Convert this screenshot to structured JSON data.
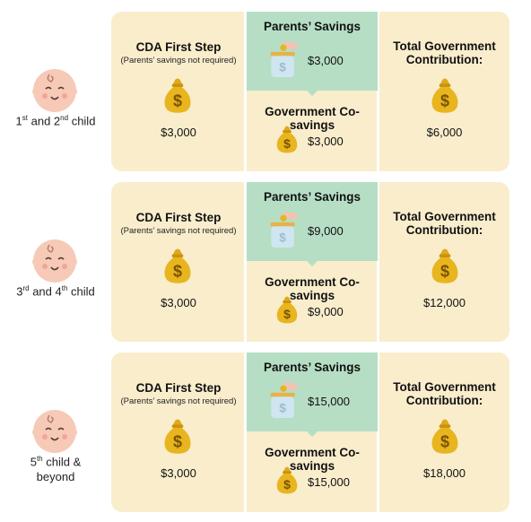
{
  "rows": [
    {
      "child_pre": "1",
      "child_sup1": "st",
      "child_mid": " and 2",
      "child_sup2": "nd",
      "child_post": " child",
      "first_step_title": "CDA First Step",
      "first_step_note": "(Parents’ savings not required)",
      "first_step_amount": "$3,000",
      "parents_title": "Parents’ Savings",
      "parents_amount": "$3,000",
      "cosave_title": "Government Co-savings",
      "cosave_amount": "$3,000",
      "total_title": "Total Government Contribution:",
      "total_amount": "$6,000"
    },
    {
      "child_pre": "3",
      "child_sup1": "rd",
      "child_mid": " and 4",
      "child_sup2": "th",
      "child_post": " child",
      "first_step_title": "CDA First Step",
      "first_step_note": "(Parents’ savings not required)",
      "first_step_amount": "$3,000",
      "parents_title": "Parents’ Savings",
      "parents_amount": "$9,000",
      "cosave_title": "Government Co-savings",
      "cosave_amount": "$9,000",
      "total_title": "Total Government Contribution:",
      "total_amount": "$12,000"
    },
    {
      "child_pre": "5",
      "child_sup1": "th",
      "child_mid": " child &",
      "child_sup2": "",
      "child_post": "",
      "child_line2": "beyond",
      "first_step_title": "CDA First Step",
      "first_step_note": "(Parents’ savings not required)",
      "first_step_amount": "$3,000",
      "parents_title": "Parents’ Savings",
      "parents_amount": "$15,000",
      "cosave_title": "Government Co-savings",
      "cosave_amount": "$15,000",
      "total_title": "Total Government Contribution:",
      "total_amount": "$18,000"
    }
  ],
  "icons": {
    "baby": "baby-face-icon",
    "bag": "money-bag-icon",
    "jar": "coin-jar-icon"
  },
  "colors": {
    "card": "#f9edcc",
    "parents_panel": "#b6dec5",
    "bag": "#e8b51f",
    "face": "#f7c9b7"
  }
}
